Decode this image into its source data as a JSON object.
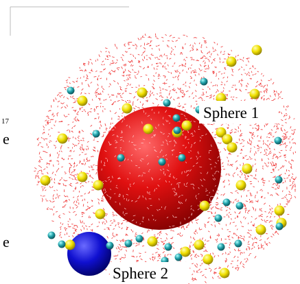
{
  "labels": [
    "Sphere 1",
    "Sphere 2"
  ],
  "edge_fragments": [
    "17",
    "e",
    "e"
  ]
}
